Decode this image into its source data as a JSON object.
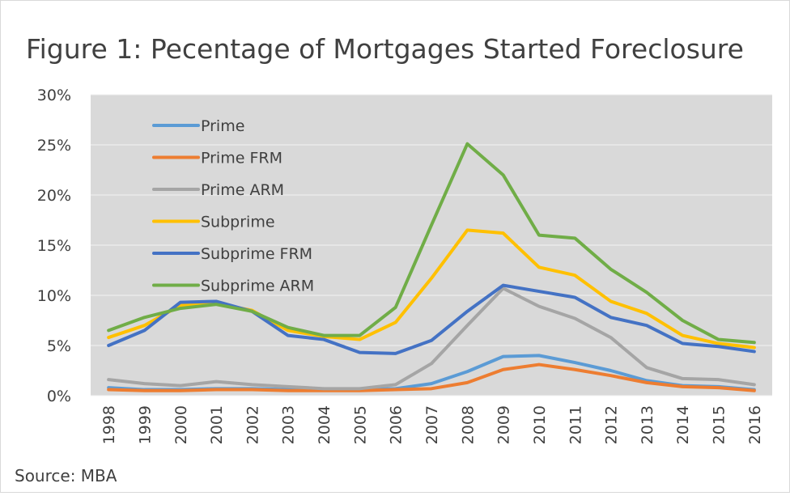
{
  "chart_data": {
    "type": "line",
    "title": "Figure 1: Pecentage of Mortgages Started Foreclosure",
    "source": "Source: MBA",
    "categories": [
      "1998",
      "1999",
      "2000",
      "2001",
      "2002",
      "2003",
      "2004",
      "2005",
      "2006",
      "2007",
      "2008",
      "2009",
      "2010",
      "2011",
      "2012",
      "2013",
      "2014",
      "2015",
      "2016"
    ],
    "series": [
      {
        "name": "Prime",
        "color": "#5b9bd5",
        "values": [
          0.8,
          0.6,
          0.6,
          0.7,
          0.7,
          0.6,
          0.6,
          0.6,
          0.7,
          1.2,
          2.4,
          3.9,
          4.0,
          3.3,
          2.5,
          1.5,
          1.0,
          0.9,
          0.6
        ]
      },
      {
        "name": "Prime FRM",
        "color": "#ed7d31",
        "values": [
          0.6,
          0.5,
          0.5,
          0.6,
          0.6,
          0.5,
          0.5,
          0.5,
          0.6,
          0.7,
          1.3,
          2.6,
          3.1,
          2.6,
          2.0,
          1.3,
          0.9,
          0.8,
          0.5
        ]
      },
      {
        "name": "Prime ARM",
        "color": "#a5a5a5",
        "values": [
          1.6,
          1.2,
          1.0,
          1.4,
          1.1,
          0.9,
          0.7,
          0.7,
          1.1,
          3.2,
          7.0,
          10.7,
          8.9,
          7.7,
          5.8,
          2.8,
          1.7,
          1.6,
          1.1
        ]
      },
      {
        "name": "Subprime",
        "color": "#ffc000",
        "values": [
          5.8,
          7.0,
          9.0,
          9.2,
          8.5,
          6.5,
          5.9,
          5.6,
          7.3,
          11.7,
          16.5,
          16.2,
          12.8,
          12.0,
          9.4,
          8.2,
          6.0,
          5.2,
          4.8
        ]
      },
      {
        "name": "Subprime FRM",
        "color": "#4472c4",
        "values": [
          5.0,
          6.5,
          9.3,
          9.4,
          8.4,
          6.0,
          5.6,
          4.3,
          4.2,
          5.5,
          8.4,
          11.0,
          10.4,
          9.8,
          7.8,
          7.0,
          5.2,
          4.9,
          4.4
        ]
      },
      {
        "name": "Subprime ARM",
        "color": "#70ad47",
        "values": [
          6.5,
          7.8,
          8.7,
          9.1,
          8.4,
          6.8,
          6.0,
          6.0,
          8.8,
          17.0,
          25.1,
          22.0,
          16.0,
          15.7,
          12.6,
          10.3,
          7.5,
          5.6,
          5.3
        ]
      }
    ],
    "ylim": [
      0,
      30
    ],
    "yticks": [
      {
        "value": 0,
        "label": "0%"
      },
      {
        "value": 5,
        "label": "5%"
      },
      {
        "value": 10,
        "label": "10%"
      },
      {
        "value": 15,
        "label": "15%"
      },
      {
        "value": 20,
        "label": "20%"
      },
      {
        "value": 25,
        "label": "25%"
      },
      {
        "value": 30,
        "label": "30%"
      }
    ],
    "grid": true
  }
}
